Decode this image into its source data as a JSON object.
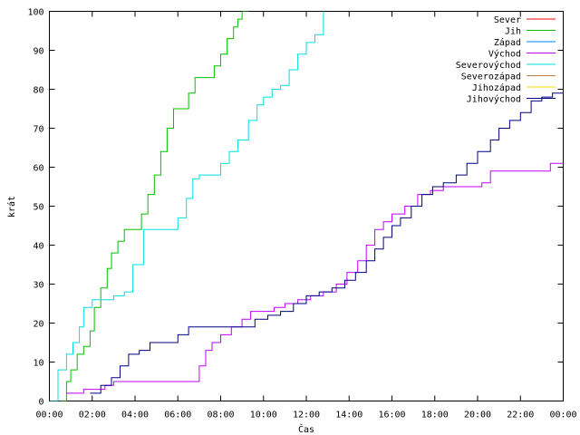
{
  "chart_data": {
    "type": "line",
    "title": "",
    "xlabel": "Čas",
    "ylabel": "krát",
    "xlim": [
      0,
      24
    ],
    "ylim": [
      0,
      100
    ],
    "x_ticks": [
      0,
      2,
      4,
      6,
      8,
      10,
      12,
      14,
      16,
      18,
      20,
      22,
      24
    ],
    "x_tick_labels": [
      "00:00",
      "02:00",
      "04:00",
      "06:00",
      "08:00",
      "10:00",
      "12:00",
      "14:00",
      "16:00",
      "18:00",
      "20:00",
      "22:00",
      "00:00"
    ],
    "y_ticks": [
      0,
      10,
      20,
      30,
      40,
      50,
      60,
      70,
      80,
      90,
      100
    ],
    "y_tick_labels": [
      "0",
      "10",
      "20",
      "30",
      "40",
      "50",
      "60",
      "70",
      "80",
      "90",
      "100"
    ],
    "grid": false,
    "legend_position": "top-right",
    "series": [
      {
        "name": "Sever",
        "color": "#ff0000",
        "x": [],
        "y": []
      },
      {
        "name": "Jih",
        "color": "#00c000",
        "x": [
          0.5,
          0.8,
          1.0,
          1.3,
          1.6,
          1.9,
          2.1,
          2.4,
          2.7,
          2.9,
          3.2,
          3.5,
          3.8,
          4.0,
          4.3,
          4.6,
          4.9,
          5.2,
          5.5,
          5.8,
          6.0,
          6.3,
          6.5,
          6.8,
          7.1,
          7.4,
          7.7,
          8.0,
          8.3,
          8.6,
          8.8,
          9.0,
          9.3
        ],
        "y": [
          0,
          5,
          8,
          12,
          14,
          18,
          24,
          29,
          34,
          38,
          41,
          44,
          44,
          44,
          48,
          53,
          58,
          64,
          70,
          75,
          75,
          75,
          79,
          83,
          83,
          83,
          86,
          89,
          93,
          96,
          98,
          100,
          100
        ]
      },
      {
        "name": "Západ",
        "color": "#0080ff",
        "x": [],
        "y": []
      },
      {
        "name": "Východ",
        "color": "#c000ff",
        "x": [
          0.8,
          1.2,
          1.6,
          2.1,
          2.6,
          3.0,
          3.6,
          4.2,
          4.8,
          5.4,
          6.0,
          6.6,
          7.0,
          7.3,
          7.6,
          8.0,
          8.5,
          9.0,
          9.4,
          9.7,
          10.0,
          10.5,
          11.0,
          11.6,
          12.2,
          12.8,
          13.4,
          13.9,
          14.4,
          14.8,
          15.2,
          15.6,
          16.0,
          16.6,
          17.2,
          17.8,
          18.4,
          19.0,
          19.6,
          20.2,
          20.6,
          21.2,
          21.8,
          22.4,
          22.9,
          23.4,
          24.0
        ],
        "y": [
          2,
          2,
          3,
          3,
          4,
          5,
          5,
          5,
          5,
          5,
          5,
          5,
          9,
          13,
          15,
          17,
          19,
          21,
          23,
          23,
          23,
          24,
          25,
          26,
          27,
          28,
          30,
          33,
          36,
          40,
          44,
          46,
          48,
          50,
          53,
          54,
          55,
          55,
          55,
          56,
          59,
          59,
          59,
          59,
          59,
          61,
          61
        ]
      },
      {
        "name": "Severovýchod",
        "color": "#00e0e0",
        "x": [
          0.0,
          0.4,
          0.8,
          1.1,
          1.4,
          1.6,
          2.0,
          2.6,
          3.0,
          3.5,
          3.9,
          4.4,
          5.0,
          5.6,
          6.0,
          6.4,
          6.7,
          7.0,
          7.5,
          8.0,
          8.4,
          8.8,
          9.3,
          9.7,
          10.0,
          10.4,
          10.8,
          11.2,
          11.6,
          12.0,
          12.4,
          12.8
        ],
        "y": [
          0,
          8,
          12,
          15,
          19,
          24,
          26,
          26,
          27,
          28,
          35,
          44,
          44,
          44,
          47,
          52,
          57,
          58,
          58,
          61,
          64,
          67,
          72,
          76,
          78,
          80,
          81,
          85,
          89,
          92,
          94,
          100
        ]
      },
      {
        "name": "Severozápad",
        "color": "#c08040",
        "x": [],
        "y": []
      },
      {
        "name": "Jihozápad",
        "color": "#ffd700",
        "x": [],
        "y": []
      },
      {
        "name": "Jihovýchod",
        "color": "#000080",
        "x": [
          1.9,
          2.4,
          2.9,
          3.3,
          3.7,
          4.2,
          4.7,
          5.3,
          6.0,
          6.5,
          7.2,
          7.8,
          8.4,
          9.0,
          9.6,
          10.2,
          10.8,
          11.4,
          12.0,
          12.6,
          13.2,
          13.8,
          14.3,
          14.8,
          15.2,
          15.6,
          16.0,
          16.4,
          16.9,
          17.4,
          17.9,
          18.4,
          19.0,
          19.5,
          20.0,
          20.6,
          21.0,
          21.5,
          22.0,
          22.5,
          23.0,
          23.5,
          24.0
        ],
        "y": [
          2,
          4,
          6,
          9,
          12,
          13,
          15,
          15,
          17,
          19,
          19,
          19,
          19,
          19,
          21,
          22,
          23,
          25,
          27,
          28,
          29,
          31,
          33,
          36,
          39,
          42,
          45,
          47,
          50,
          53,
          55,
          56,
          58,
          61,
          64,
          67,
          70,
          72,
          74,
          77,
          78,
          79,
          80
        ]
      }
    ]
  }
}
